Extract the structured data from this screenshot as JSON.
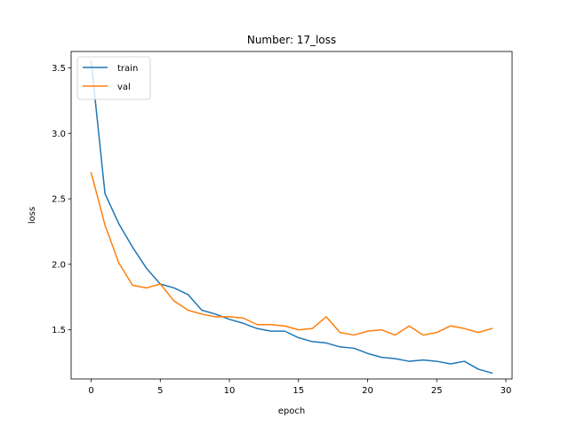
{
  "chart_data": {
    "type": "line",
    "title": "Number: 17_loss",
    "xlabel": "epoch",
    "ylabel": "loss",
    "xlim": [
      -1.45,
      30.45
    ],
    "ylim": [
      1.125,
      3.625
    ],
    "xticks": [
      0,
      5,
      10,
      15,
      20,
      25,
      30
    ],
    "yticks": [
      1.5,
      2.0,
      2.5,
      3.0,
      3.5
    ],
    "xtick_labels": [
      "0",
      "5",
      "10",
      "15",
      "20",
      "25",
      "30"
    ],
    "ytick_labels": [
      "1.5",
      "2.0",
      "2.5",
      "3.0",
      "3.5"
    ],
    "grid": false,
    "legend_position": "top-left",
    "x": [
      0,
      1,
      2,
      3,
      4,
      5,
      6,
      7,
      8,
      9,
      10,
      11,
      12,
      13,
      14,
      15,
      16,
      17,
      18,
      19,
      20,
      21,
      22,
      23,
      24,
      25,
      26,
      27,
      28,
      29
    ],
    "series": [
      {
        "name": "train",
        "color": "#1f77b4",
        "values": [
          3.55,
          2.54,
          2.31,
          2.13,
          1.97,
          1.85,
          1.82,
          1.77,
          1.65,
          1.62,
          1.58,
          1.55,
          1.51,
          1.49,
          1.49,
          1.44,
          1.41,
          1.4,
          1.37,
          1.36,
          1.32,
          1.29,
          1.28,
          1.26,
          1.27,
          1.26,
          1.24,
          1.26,
          1.2,
          1.17
        ]
      },
      {
        "name": "val",
        "color": "#ff7f0e",
        "values": [
          2.7,
          2.3,
          2.01,
          1.84,
          1.82,
          1.85,
          1.72,
          1.65,
          1.62,
          1.6,
          1.6,
          1.59,
          1.54,
          1.54,
          1.53,
          1.5,
          1.51,
          1.6,
          1.48,
          1.46,
          1.49,
          1.5,
          1.46,
          1.53,
          1.46,
          1.48,
          1.53,
          1.51,
          1.48,
          1.51
        ]
      }
    ]
  }
}
